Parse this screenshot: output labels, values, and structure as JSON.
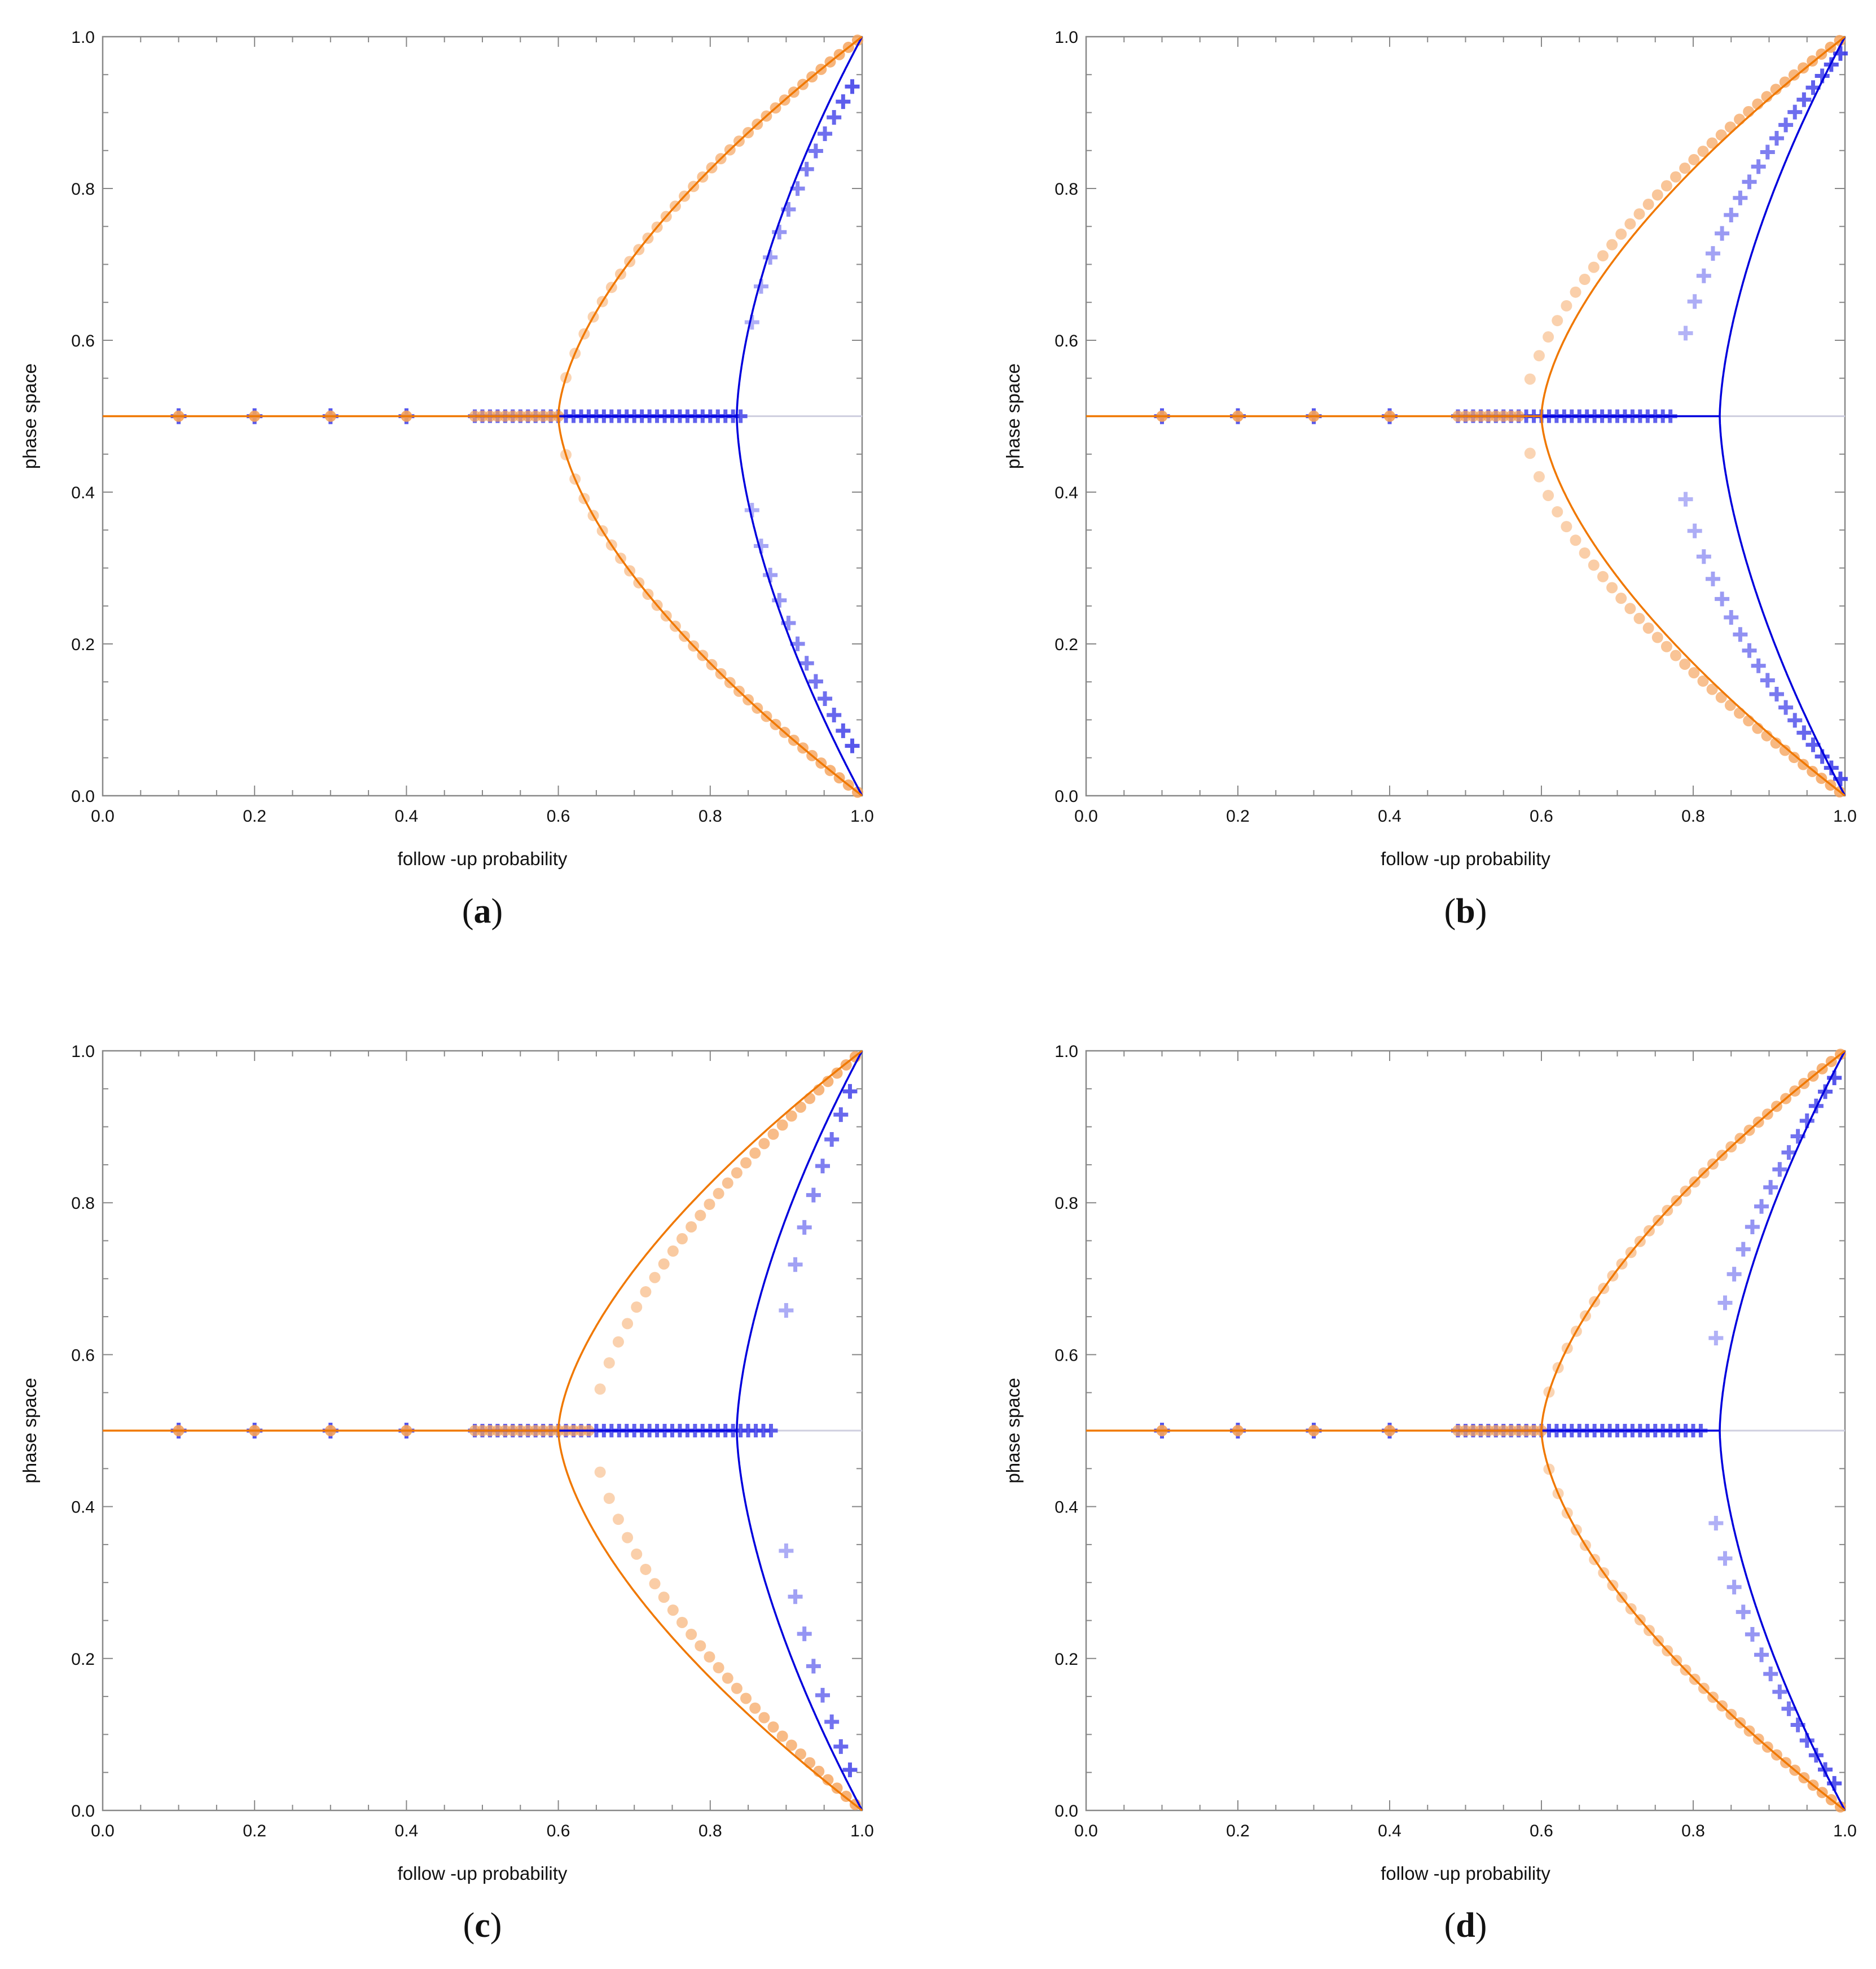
{
  "figure": {
    "panel_labels": [
      "a",
      "b",
      "c",
      "d"
    ]
  },
  "colors": {
    "orange": "#f07800",
    "orange_marker": "#f5a25a",
    "blue": "#0000dd",
    "blue_marker": "#3a3ae8",
    "axis": "#888888",
    "baseline": "#cfcfdf"
  },
  "chart_data": [
    {
      "panel": "a",
      "type": "scatter",
      "xlabel": "follow -up probability",
      "ylabel": "phase space",
      "xlim": [
        0,
        1
      ],
      "ylim": [
        0,
        1
      ],
      "xticks": [
        "0.0",
        "0.2",
        "0.4",
        "0.6",
        "0.8",
        "1.0"
      ],
      "yticks": [
        "0.0",
        "0.2",
        "0.4",
        "0.6",
        "0.8",
        "1.0"
      ],
      "series": [
        {
          "name": "orange theory",
          "kind": "line",
          "onset": 0.6,
          "upper_at_1": 1.0
        },
        {
          "name": "blue theory",
          "kind": "line",
          "onset": 0.835,
          "upper_at_1": 1.0
        },
        {
          "name": "orange sim",
          "kind": "markers",
          "onset": 0.6,
          "spread": 0
        },
        {
          "name": "blue sim",
          "kind": "markers",
          "onset": 0.84,
          "end_upper": 0.955,
          "end_lower": 0.045
        }
      ]
    },
    {
      "panel": "b",
      "type": "scatter",
      "xlabel": "follow -up probability",
      "ylabel": "phase space",
      "xlim": [
        0,
        1
      ],
      "ylim": [
        0,
        1
      ],
      "xticks": [
        "0.0",
        "0.2",
        "0.4",
        "0.6",
        "0.8",
        "1.0"
      ],
      "yticks": [
        "0.0",
        "0.2",
        "0.4",
        "0.6",
        "0.8",
        "1.0"
      ],
      "series": [
        {
          "name": "orange theory",
          "kind": "line",
          "onset": 0.6,
          "upper_at_1": 1.0
        },
        {
          "name": "blue theory",
          "kind": "line",
          "onset": 0.835,
          "upper_at_1": 1.0
        },
        {
          "name": "orange sim",
          "kind": "markers",
          "onset": 0.575,
          "spread": 0
        },
        {
          "name": "blue sim",
          "kind": "markers",
          "onset": 0.775,
          "end_upper": 0.985,
          "end_lower": 0.015
        }
      ]
    },
    {
      "panel": "c",
      "type": "scatter",
      "xlabel": "follow -up probability",
      "ylabel": "phase space",
      "xlim": [
        0,
        1
      ],
      "ylim": [
        0,
        1
      ],
      "xticks": [
        "0.0",
        "0.2",
        "0.4",
        "0.6",
        "0.8",
        "1.0"
      ],
      "yticks": [
        "0.0",
        "0.2",
        "0.4",
        "0.6",
        "0.8",
        "1.0"
      ],
      "series": [
        {
          "name": "orange theory",
          "kind": "line",
          "onset": 0.6,
          "upper_at_1": 1.0
        },
        {
          "name": "blue theory",
          "kind": "line",
          "onset": 0.835,
          "upper_at_1": 1.0
        },
        {
          "name": "orange sim",
          "kind": "markers",
          "onset": 0.645,
          "spread": 0
        },
        {
          "name": "blue sim",
          "kind": "markers",
          "onset": 0.885,
          "end_upper": 0.985,
          "end_lower": 0.015
        }
      ]
    },
    {
      "panel": "d",
      "type": "scatter",
      "xlabel": "follow -up probability",
      "ylabel": "phase space",
      "xlim": [
        0,
        1
      ],
      "ylim": [
        0,
        1
      ],
      "xticks": [
        "0.0",
        "0.2",
        "0.4",
        "0.6",
        "0.8",
        "1.0"
      ],
      "yticks": [
        "0.0",
        "0.2",
        "0.4",
        "0.6",
        "0.8",
        "1.0"
      ],
      "series": [
        {
          "name": "orange theory",
          "kind": "line",
          "onset": 0.6,
          "upper_at_1": 1.0
        },
        {
          "name": "blue theory",
          "kind": "line",
          "onset": 0.835,
          "upper_at_1": 1.0
        },
        {
          "name": "orange sim",
          "kind": "markers",
          "onset": 0.6,
          "spread": 0
        },
        {
          "name": "blue sim",
          "kind": "markers",
          "onset": 0.815,
          "end_upper": 0.985,
          "end_lower": 0.015
        }
      ]
    }
  ]
}
